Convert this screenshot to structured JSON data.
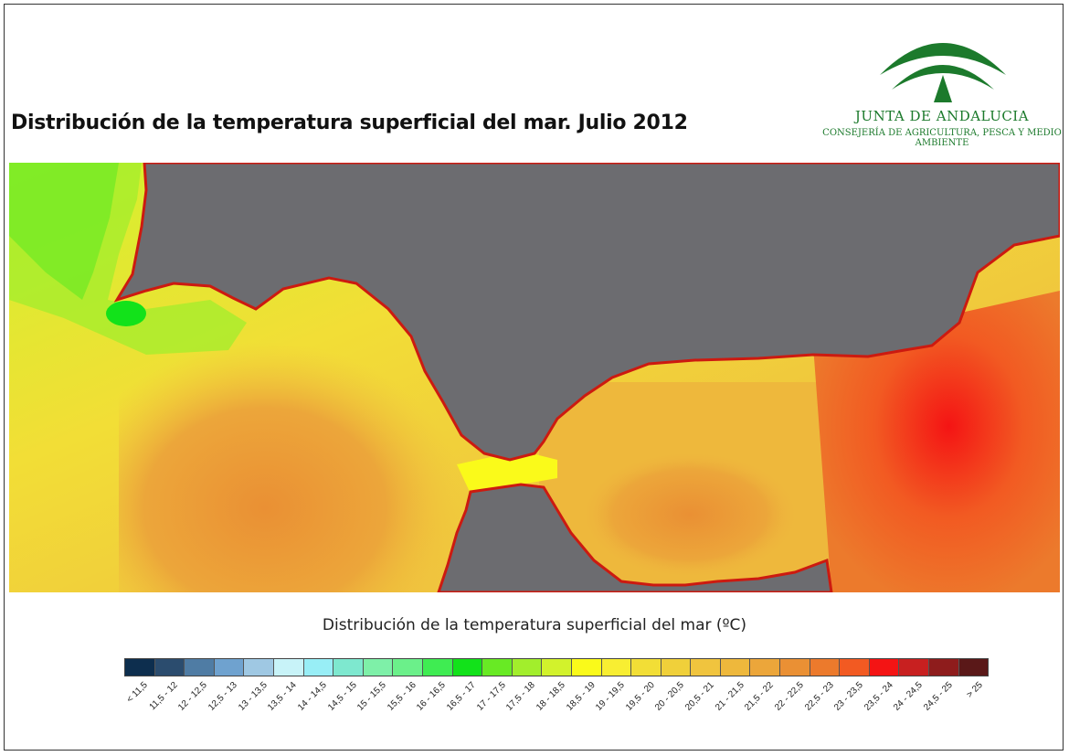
{
  "title": "Distribución de la temperatura superficial del mar. Julio 2012",
  "logo": {
    "name": "JUNTA DE ANDALUCIA",
    "subtitle": "CONSEJERÍA DE AGRICULTURA, PESCA Y MEDIO AMBIENTE",
    "color": "#1c7a2c"
  },
  "map": {
    "land_color": "#6c6c70",
    "coast_color": "#cc1a10"
  },
  "legend": {
    "title": "Distribución de la temperatura superficial del mar (ºC)",
    "classes": [
      {
        "label": "< 11,5",
        "color": "#0d2e4e"
      },
      {
        "label": "11,5 - 12",
        "color": "#2b4c6e"
      },
      {
        "label": "12 - 12,5",
        "color": "#4f7ca4"
      },
      {
        "label": "12,5 - 13",
        "color": "#6fa2cf"
      },
      {
        "label": "13 - 13,5",
        "color": "#9fc8e3"
      },
      {
        "label": "13,5 - 14",
        "color": "#c8f3f8"
      },
      {
        "label": "14 - 14,5",
        "color": "#98eef6"
      },
      {
        "label": "14,5 - 15",
        "color": "#7ee8cf"
      },
      {
        "label": "15 - 15,5",
        "color": "#7ef0a8"
      },
      {
        "label": "15,5 - 16",
        "color": "#6bf08a"
      },
      {
        "label": "16 - 16,5",
        "color": "#3fec52"
      },
      {
        "label": "16,5 - 17",
        "color": "#12e21a"
      },
      {
        "label": "17 - 17,5",
        "color": "#68ea24"
      },
      {
        "label": "17,5 - 18",
        "color": "#a2ee2c"
      },
      {
        "label": "18 - 18,5",
        "color": "#d2f22c"
      },
      {
        "label": "18,5 - 19",
        "color": "#fafa1a"
      },
      {
        "label": "19 - 19,5",
        "color": "#f8ee32"
      },
      {
        "label": "19,5 - 20",
        "color": "#f2de36"
      },
      {
        "label": "20 - 20,5",
        "color": "#f0d03a"
      },
      {
        "label": "20,5 - 21",
        "color": "#f0c43e"
      },
      {
        "label": "21 - 21,5",
        "color": "#eeb83c"
      },
      {
        "label": "21,5 - 22",
        "color": "#eca63a"
      },
      {
        "label": "22 - 22,5",
        "color": "#ea9034"
      },
      {
        "label": "22,5 - 23",
        "color": "#ec7a2c"
      },
      {
        "label": "23 - 23,5",
        "color": "#f25a22"
      },
      {
        "label": "23,5 - 24",
        "color": "#f41414"
      },
      {
        "label": "24 - 24,5",
        "color": "#c82020"
      },
      {
        "label": "24,5 - 25",
        "color": "#8e1c1c"
      },
      {
        "label": "> 25",
        "color": "#5a1818"
      }
    ]
  }
}
